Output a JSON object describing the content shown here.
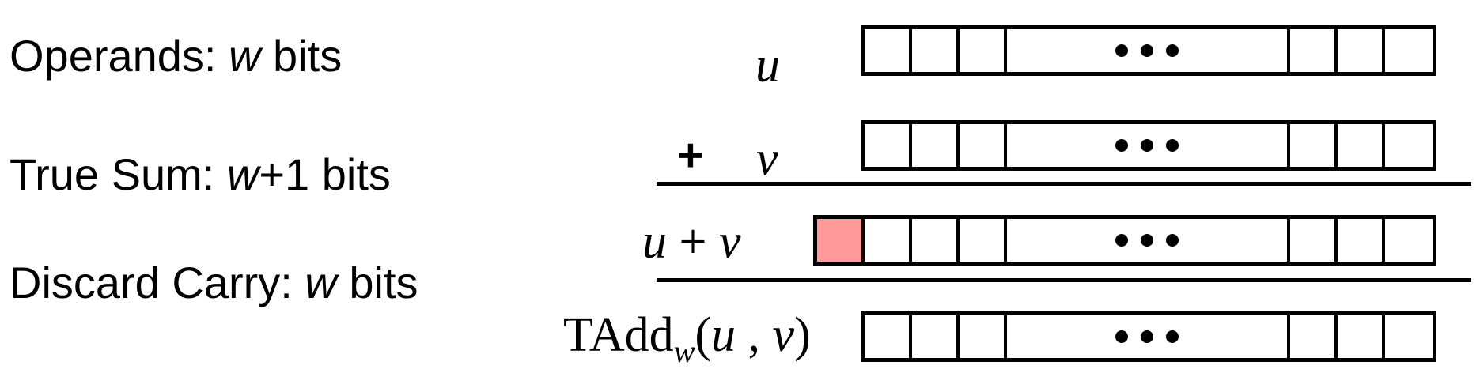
{
  "labels": {
    "operands_prefix": "Operands: ",
    "operands_var": "w",
    "operands_suffix": " bits",
    "true_sum_prefix": "True Sum: ",
    "true_sum_var": "w",
    "true_sum_suffix": "+1 bits",
    "discard_prefix": "Discard Carry: ",
    "discard_var": "w",
    "discard_suffix": " bits"
  },
  "math": {
    "u": "u",
    "plus": "+",
    "v": "v",
    "sum_u": "u",
    "sum_op": " + ",
    "sum_v": "v",
    "tadd_name": "TAdd",
    "tadd_sub": "w",
    "tadd_open": "(",
    "tadd_arg1": "u",
    "tadd_sep": " , ",
    "tadd_arg2": "v",
    "tadd_close": ")"
  },
  "colors": {
    "carry_bit": "#fe9a99",
    "ink": "#000000"
  }
}
